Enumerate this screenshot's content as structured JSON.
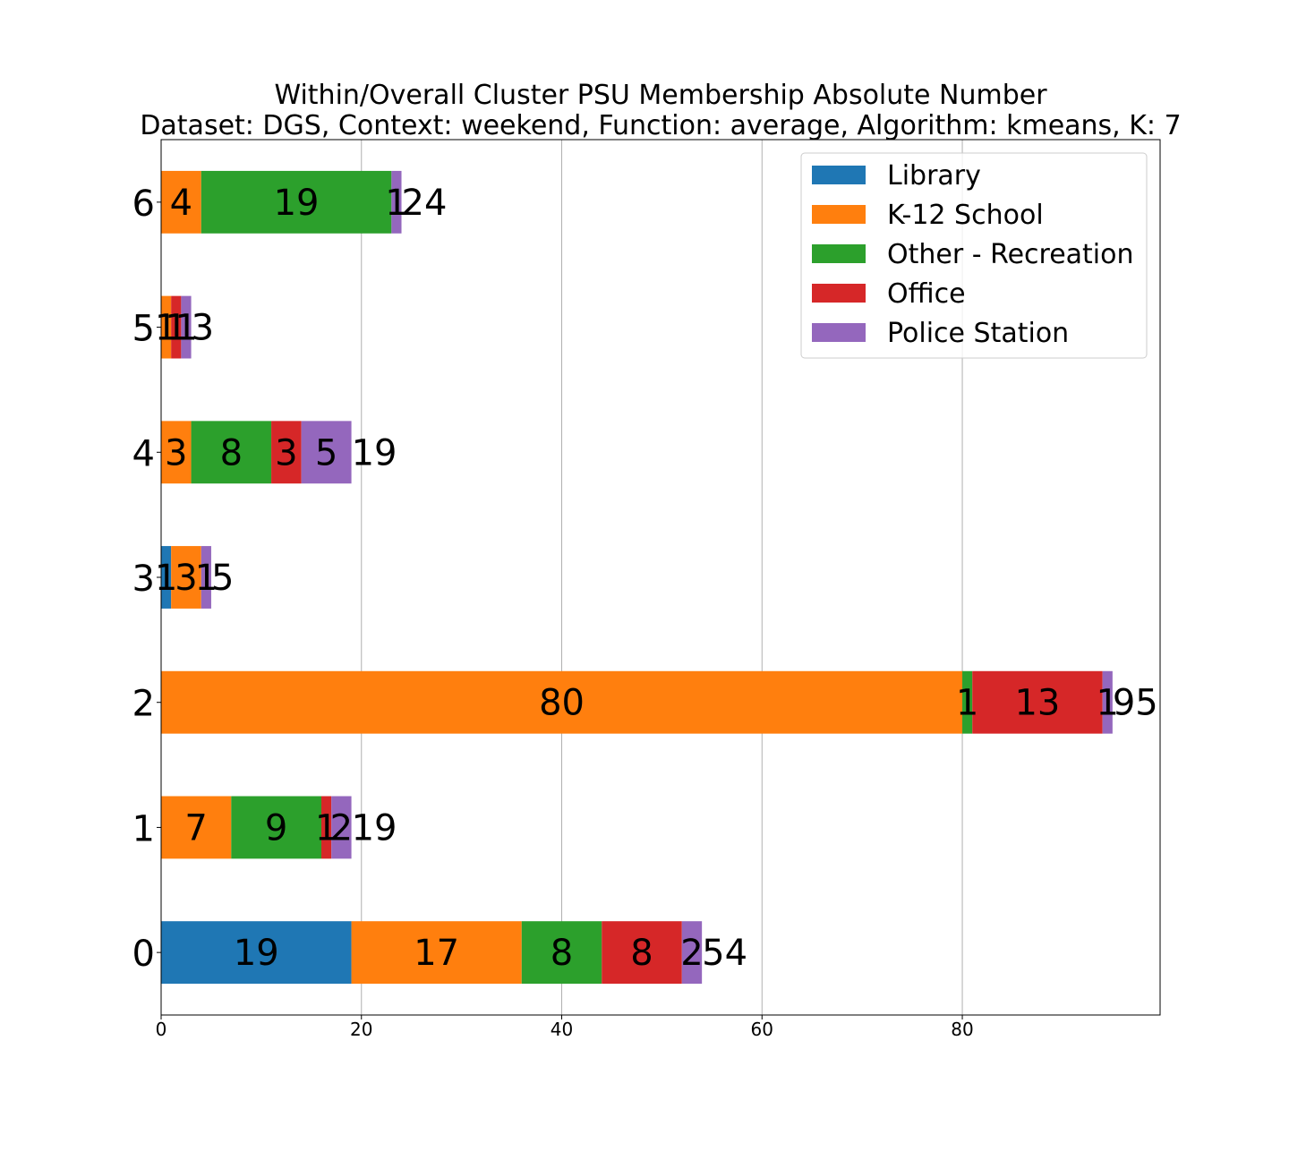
{
  "chart_data": {
    "type": "bar",
    "orientation": "horizontal",
    "stacked": true,
    "title": "Within/Overall Cluster PSU Membership Absolute Number",
    "subtitle": "Dataset: DGS, Context: weekend, Function: average, Algorithm: kmeans, K: 7",
    "xlabel": "",
    "ylabel": "",
    "categories": [
      "0",
      "1",
      "2",
      "3",
      "4",
      "5",
      "6"
    ],
    "xlim": [
      0,
      99.75
    ],
    "xticks": [
      0,
      20,
      40,
      60,
      80
    ],
    "grid": "x",
    "legend_position": "top-right",
    "series": [
      {
        "name": "Library",
        "color": "#1f77b4",
        "values": [
          19,
          0,
          0,
          1,
          0,
          0,
          0
        ]
      },
      {
        "name": "K-12 School",
        "color": "#ff7f0e",
        "values": [
          17,
          7,
          80,
          3,
          3,
          1,
          4
        ]
      },
      {
        "name": "Other - Recreation",
        "color": "#2ca02c",
        "values": [
          8,
          9,
          1,
          0,
          8,
          0,
          19
        ]
      },
      {
        "name": "Office",
        "color": "#d62728",
        "values": [
          8,
          1,
          13,
          0,
          3,
          1,
          0
        ]
      },
      {
        "name": "Police Station",
        "color": "#9467bd",
        "values": [
          2,
          2,
          1,
          1,
          5,
          1,
          1
        ]
      }
    ],
    "totals": [
      54,
      19,
      95,
      5,
      19,
      3,
      24
    ]
  }
}
